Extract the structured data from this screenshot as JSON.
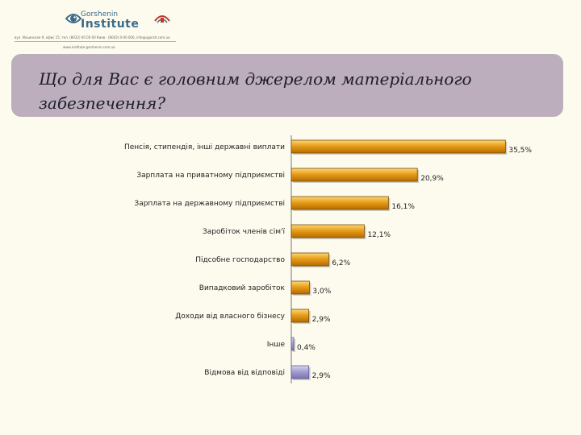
{
  "header": {
    "logo_line1": "Gorshenin",
    "logo_line2": "Institute",
    "contact_line1": "вул. Ильинская 9, офис 15, тел. (8032) 00 00 00 Киев · (8043) 0-00 000, info@ugorsh.com.ua",
    "contact_line2": "www.institute.gorshenin.com.ua"
  },
  "title": "Що для Вас є головним джерелом матеріального забезпечення?",
  "colors": {
    "primary_bar": "#d98e06",
    "other_bar": "#9f9bcf",
    "title_box": "#bcaebd",
    "background": "#fdfbee"
  },
  "chart_data": {
    "type": "bar",
    "orientation": "horizontal",
    "title": "",
    "xlabel": "",
    "ylabel": "",
    "xlim": [
      0,
      40
    ],
    "grid": false,
    "legend": "none",
    "categories": [
      "Пенсія, стипендія, інші державні виплати",
      "Зарплата на приватному підприємстві",
      "Зарплата на державному підприємстві",
      "Заробіток членів сім'ї",
      "Підсобне господарство",
      "Випадковий заробіток",
      "Доходи від власного бізнесу",
      "Інше",
      "Відмова від відповіді"
    ],
    "values": [
      35.5,
      20.9,
      16.1,
      12.1,
      6.2,
      3.0,
      2.9,
      0.4,
      2.9
    ],
    "value_labels": [
      "35,5%",
      "20,9%",
      "16,1%",
      "12,1%",
      "6,2%",
      "3,0%",
      "2,9%",
      "0,4%",
      "2,9%"
    ],
    "bar_colors": [
      "#d98e06",
      "#d98e06",
      "#d98e06",
      "#d98e06",
      "#d98e06",
      "#d98e06",
      "#d98e06",
      "#9f9bcf",
      "#9f9bcf"
    ]
  }
}
